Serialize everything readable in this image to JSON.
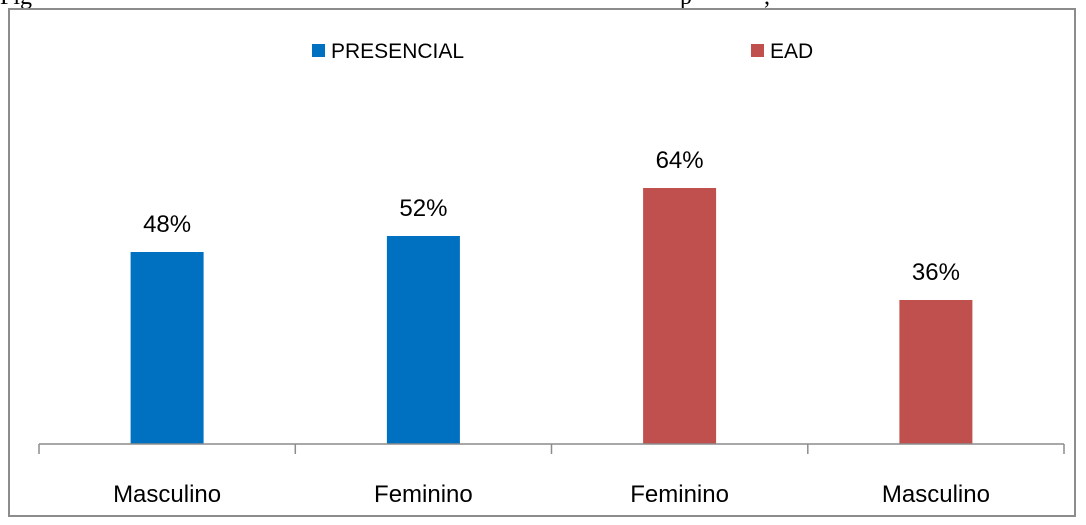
{
  "caption_fragment": "Fig                                                                                                            p            ,",
  "chart_data": {
    "type": "bar",
    "categories": [
      "Masculino",
      "Feminino",
      "Feminino",
      "Masculino"
    ],
    "series": [
      {
        "name": "PRESENCIAL",
        "color": "#0070C0",
        "values": [
          48,
          52,
          null,
          null
        ]
      },
      {
        "name": "EAD",
        "color": "#C0504D",
        "values": [
          null,
          null,
          64,
          36
        ]
      }
    ],
    "data_labels": [
      "48%",
      "52%",
      "64%",
      "36%"
    ],
    "unit": "%",
    "ylim": [
      0,
      80
    ],
    "grid": false,
    "legend_position": "top"
  }
}
